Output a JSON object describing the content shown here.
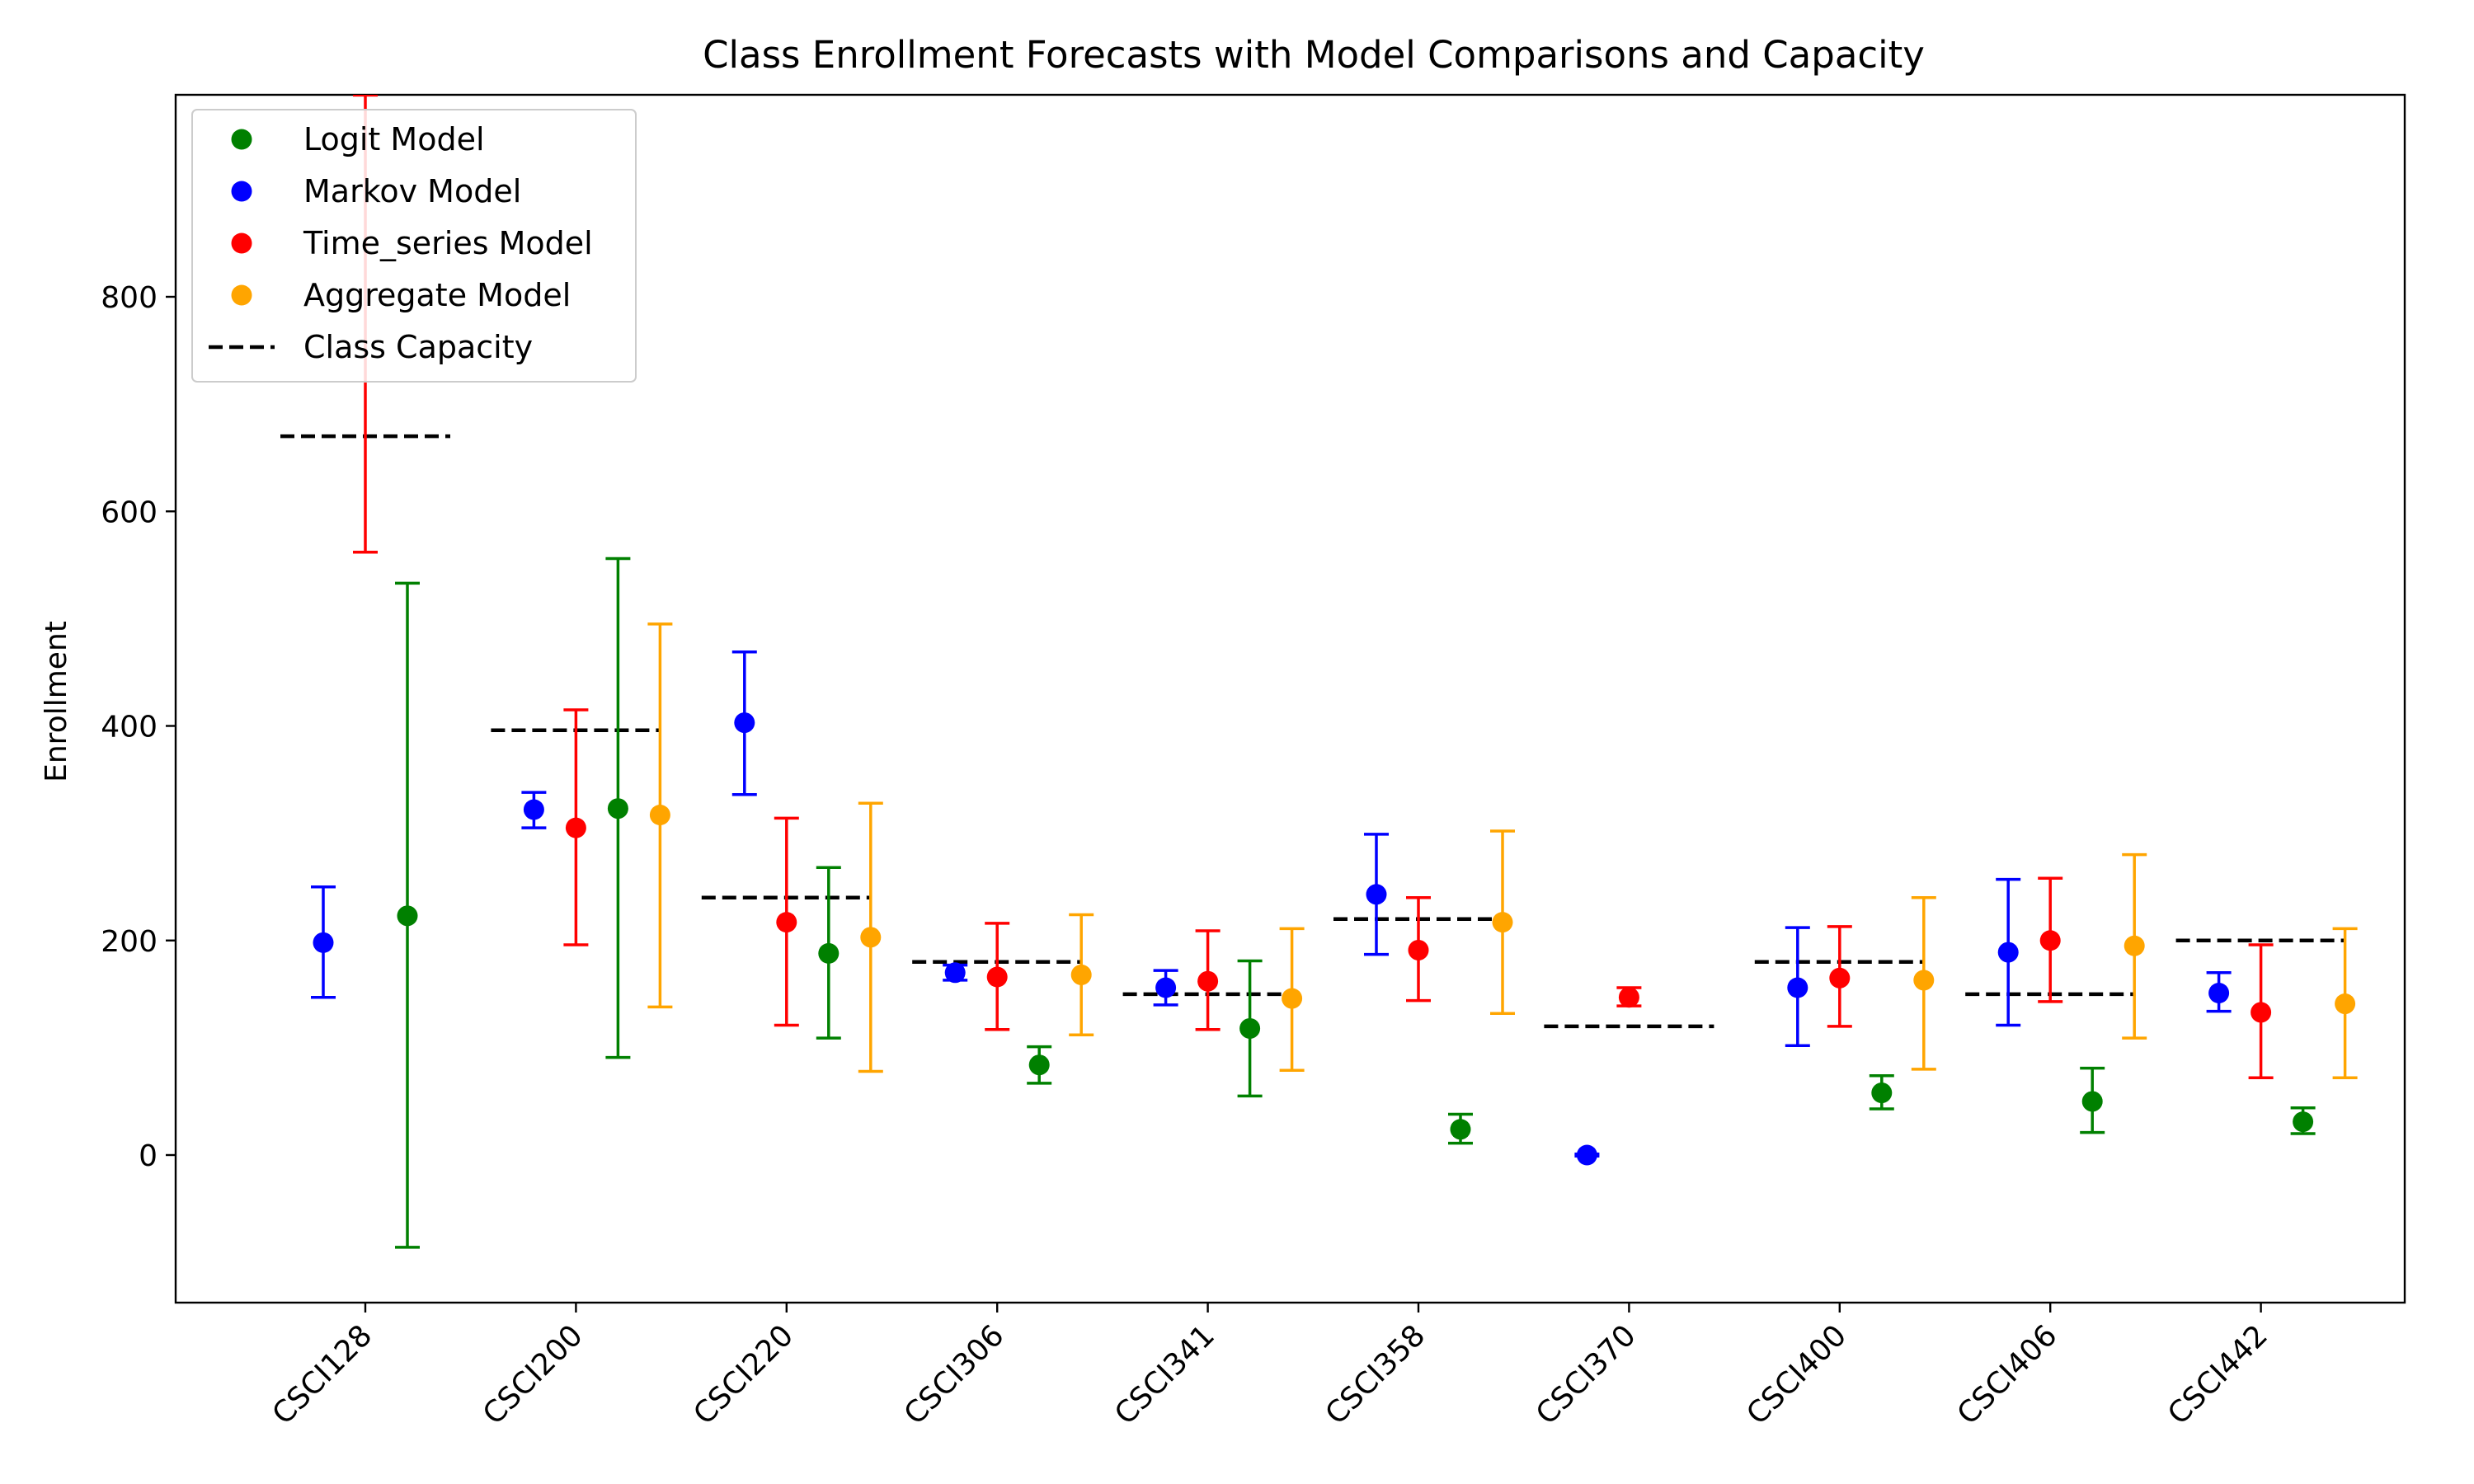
{
  "chart_data": {
    "type": "scatter",
    "title": "Class Enrollment Forecasts with Model Comparisons and Capacity",
    "xlabel": "",
    "ylabel": "Enrollment",
    "categories": [
      "CSCI128",
      "CSCI200",
      "CSCI220",
      "CSCI306",
      "CSCI341",
      "CSCI358",
      "CSCI370",
      "CSCI400",
      "CSCI406",
      "CSCI442"
    ],
    "ylim": [
      -137,
      988
    ],
    "yticks": [
      0,
      200,
      400,
      600,
      800
    ],
    "grid": false,
    "legend_position": "upper-left",
    "series": [
      {
        "name": "Logit Model",
        "color": "#008000",
        "values": [
          223,
          323,
          188,
          84,
          118,
          24,
          null,
          58,
          50,
          31
        ],
        "lower": [
          -86,
          91,
          109,
          67,
          55,
          11,
          null,
          43,
          21,
          20
        ],
        "upper": [
          533,
          556,
          268,
          101,
          181,
          38,
          null,
          74,
          81,
          44
        ]
      },
      {
        "name": "Markov Model",
        "color": "#0000ff",
        "values": [
          198,
          322,
          403,
          170,
          156,
          243,
          0,
          156,
          189,
          151
        ],
        "lower": [
          147,
          305,
          336,
          163,
          140,
          187,
          -1,
          102,
          121,
          134
        ],
        "upper": [
          250,
          338,
          469,
          177,
          172,
          299,
          1,
          212,
          257,
          170
        ]
      },
      {
        "name": "Time_series Model",
        "color": "#ff0000",
        "values": [
          null,
          305,
          217,
          166,
          162,
          191,
          147,
          165,
          200,
          133
        ],
        "lower": [
          562,
          196,
          121,
          117,
          117,
          144,
          139,
          120,
          143,
          72
        ],
        "upper": [
          988,
          415,
          314,
          216,
          209,
          240,
          156,
          213,
          258,
          196
        ]
      },
      {
        "name": "Aggregate Model",
        "color": "#ffa500",
        "values": [
          null,
          317,
          203,
          168,
          146,
          217,
          null,
          163,
          195,
          141
        ],
        "lower": [
          null,
          138,
          78,
          112,
          79,
          132,
          null,
          80,
          109,
          72
        ],
        "upper": [
          null,
          495,
          328,
          224,
          211,
          302,
          null,
          240,
          280,
          211
        ]
      }
    ],
    "capacity": {
      "name": "Class Capacity",
      "color": "#000000",
      "values": [
        670,
        396,
        240,
        180,
        150,
        220,
        120,
        180,
        150,
        200
      ]
    }
  }
}
